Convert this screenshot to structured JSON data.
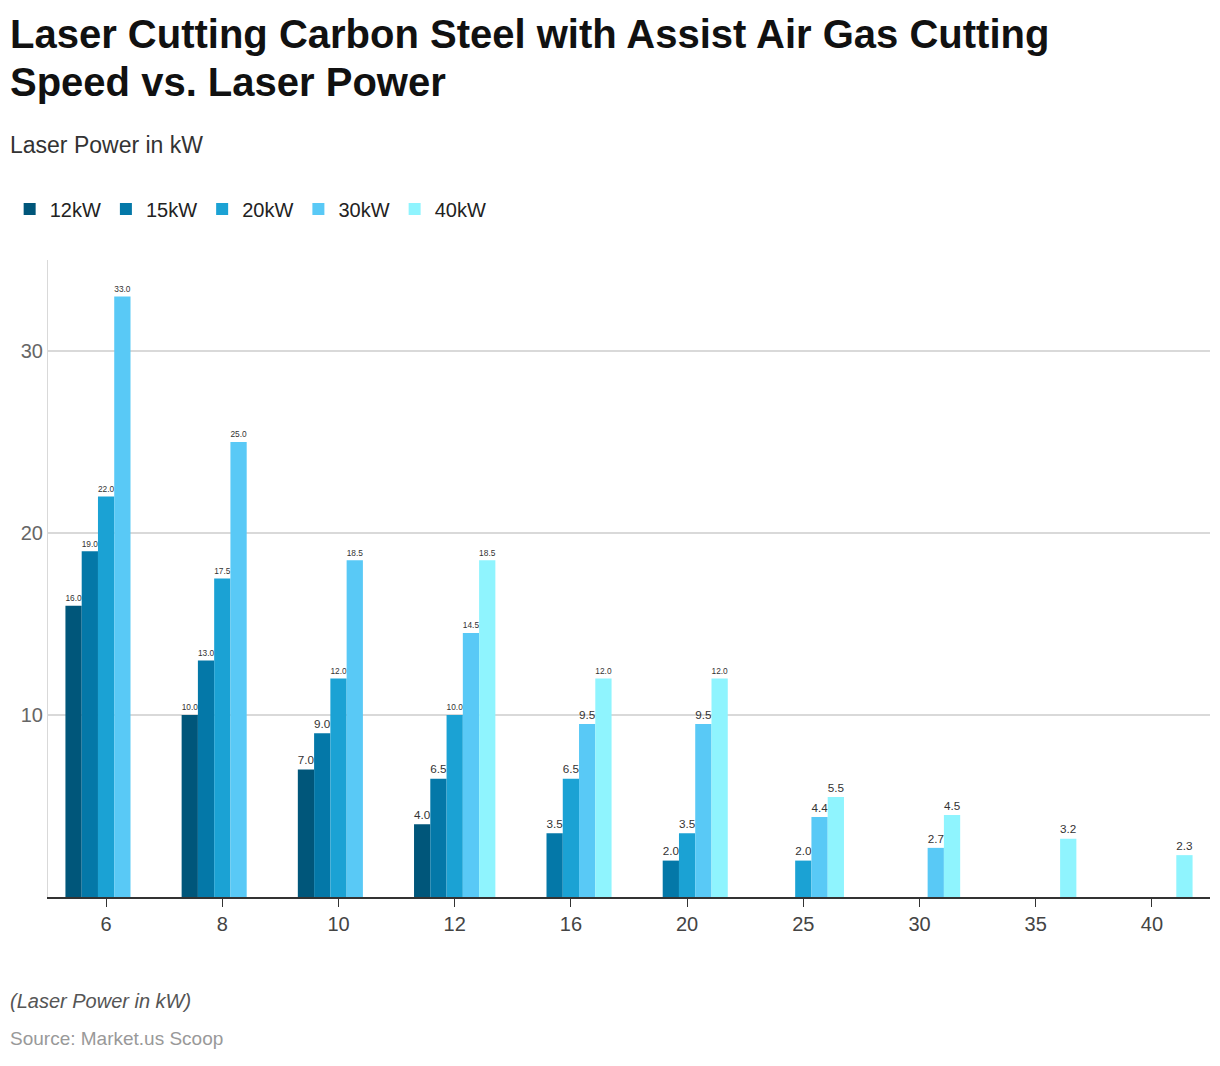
{
  "chart_data": {
    "type": "bar",
    "title": "Laser Cutting Carbon Steel with Assist Air Gas Cutting Speed vs. Laser Power",
    "subtitle": "Laser Power in kW",
    "x_label": "(Laser Power in kW)",
    "source": "Source: Market.us Scoop",
    "categories": [
      "6",
      "8",
      "10",
      "12",
      "16",
      "20",
      "25",
      "30",
      "35",
      "40"
    ],
    "series": [
      {
        "name": "12kW",
        "color": "#00567a",
        "values": [
          16,
          10,
          7,
          4,
          null,
          null,
          null,
          null,
          null,
          null
        ],
        "value_labels": [
          "16.0",
          "10.0",
          "7.0",
          "4.0",
          null,
          null,
          null,
          null,
          null,
          null
        ]
      },
      {
        "name": "15kW",
        "color": "#0478a8",
        "values": [
          19,
          13,
          9,
          6.5,
          3.5,
          2,
          null,
          null,
          null,
          null
        ],
        "value_labels": [
          "19.0",
          "13.0",
          "9.0",
          "6.5",
          "3.5",
          "2.0",
          null,
          null,
          null,
          null
        ]
      },
      {
        "name": "20kW",
        "color": "#1ba2d4",
        "values": [
          22,
          17.5,
          12,
          10,
          6.5,
          3.5,
          2,
          null,
          null,
          null
        ],
        "value_labels": [
          "22.0",
          "17.5",
          "12.0",
          "10.0",
          "6.5",
          "3.5",
          "2.0",
          null,
          null,
          null
        ]
      },
      {
        "name": "30kW",
        "color": "#59c9f6",
        "values": [
          33,
          25,
          18.5,
          14.5,
          9.5,
          9.5,
          4.4,
          2.7,
          null,
          null
        ],
        "value_labels": [
          "33.0",
          "25.0",
          "18.5",
          "14.5",
          "9.5",
          "9.5",
          "4.4",
          "2.7",
          null,
          null
        ]
      },
      {
        "name": "40kW",
        "color": "#8ff4fe",
        "values": [
          null,
          null,
          null,
          18.5,
          12,
          12,
          5.5,
          4.5,
          3.2,
          2.3
        ],
        "value_labels": [
          null,
          null,
          null,
          "18.5",
          "12.0",
          "12.0",
          "5.5",
          "4.5",
          "3.2",
          "2.3"
        ]
      }
    ],
    "ylim": [
      0,
      35
    ],
    "yticks": [
      10,
      20,
      30
    ],
    "grid": true,
    "legend": "top-left",
    "data_labels": true
  }
}
